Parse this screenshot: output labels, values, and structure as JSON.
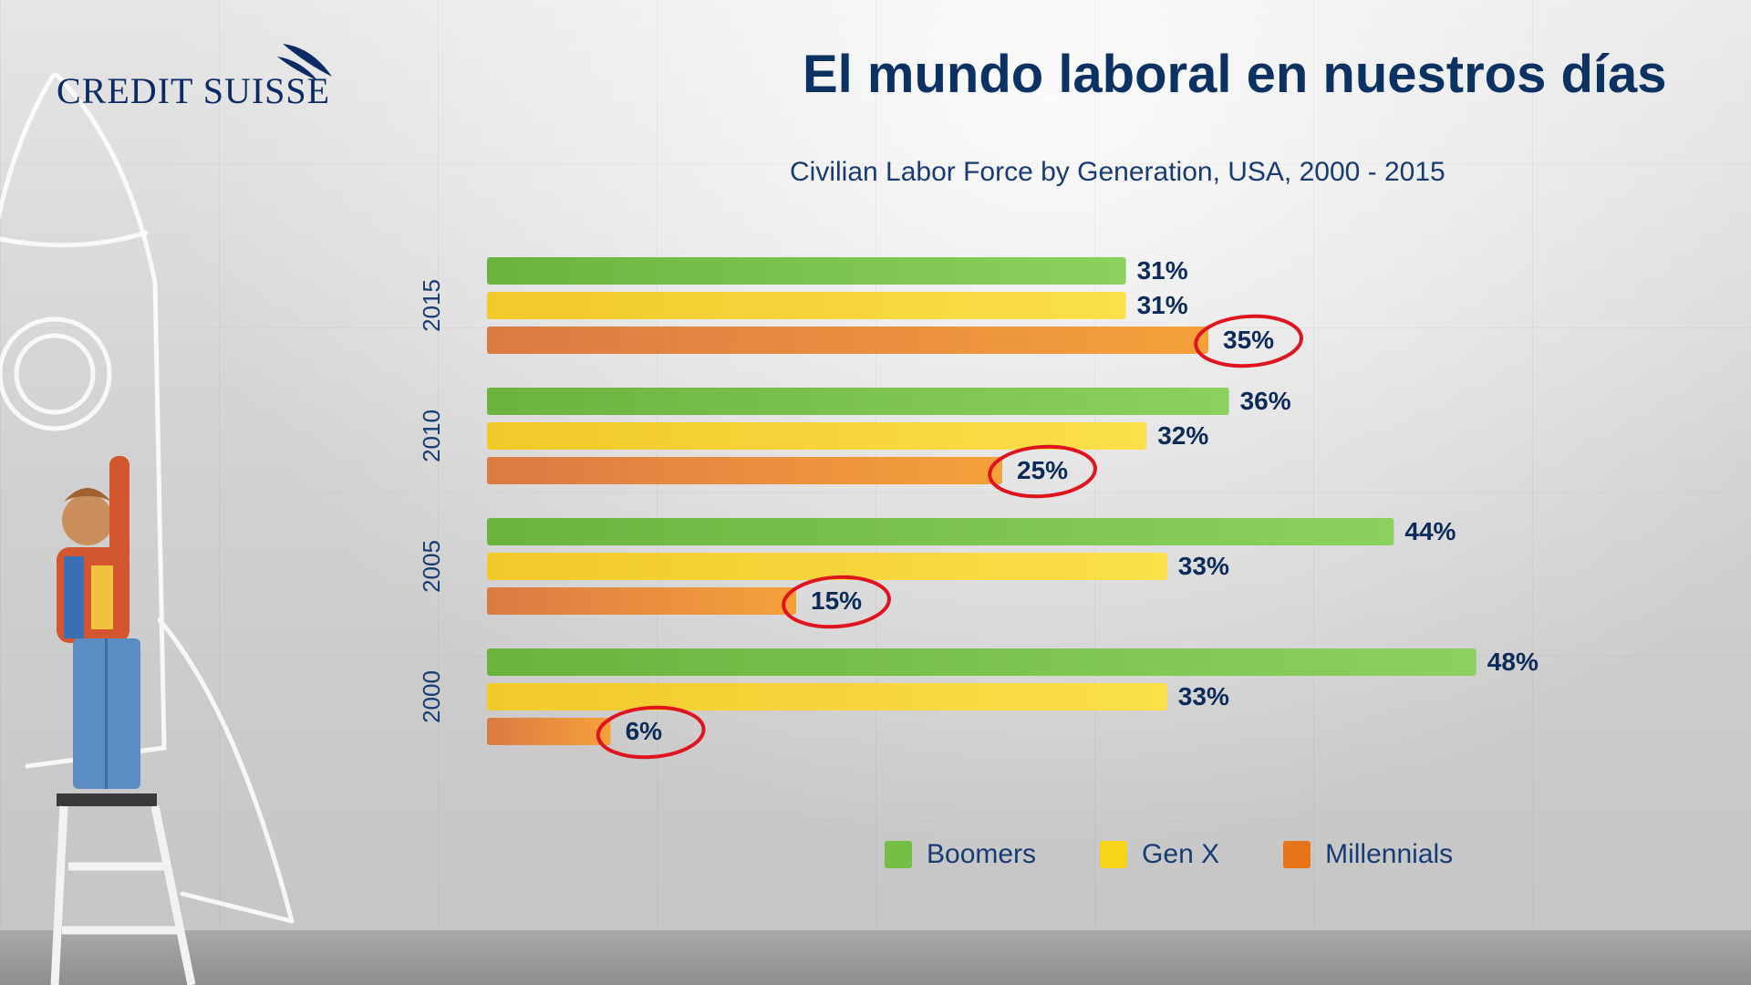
{
  "header": {
    "logo_text": "CREDIT SUISSE",
    "title": "El mundo laboral en nuestros días"
  },
  "colors": {
    "boomers": "#7cc04f",
    "genx": "#f5d132",
    "millennials_start": "#dc7a44",
    "millennials_end": "#f5a13a",
    "label": "#0b2b5a",
    "circle": "#e0141e"
  },
  "chart_data": {
    "type": "bar",
    "orientation": "horizontal",
    "title": "Civilian Labor Force by Generation, USA, 2000 - 2015",
    "categories": [
      "2015",
      "2010",
      "2005",
      "2000"
    ],
    "series": [
      {
        "name": "Boomers",
        "values": [
          31,
          36,
          44,
          48
        ],
        "labels": [
          "31%",
          "36%",
          "44%",
          "48%"
        ]
      },
      {
        "name": "Gen X",
        "values": [
          31,
          32,
          33,
          33
        ],
        "labels": [
          "31%",
          "32%",
          "33%",
          "33%"
        ]
      },
      {
        "name": "Millennials",
        "values": [
          35,
          25,
          15,
          6
        ],
        "labels": [
          "35%",
          "25%",
          "15%",
          "6%"
        ]
      }
    ],
    "highlighted_series": "Millennials",
    "xlim": [
      0,
      50
    ],
    "legend_position": "bottom"
  },
  "legend": {
    "items": [
      {
        "label": "Boomers",
        "icon": "green-square-icon"
      },
      {
        "label": "Gen X",
        "icon": "yellow-square-icon"
      },
      {
        "label": "Millennials",
        "icon": "orange-square-icon"
      }
    ]
  }
}
